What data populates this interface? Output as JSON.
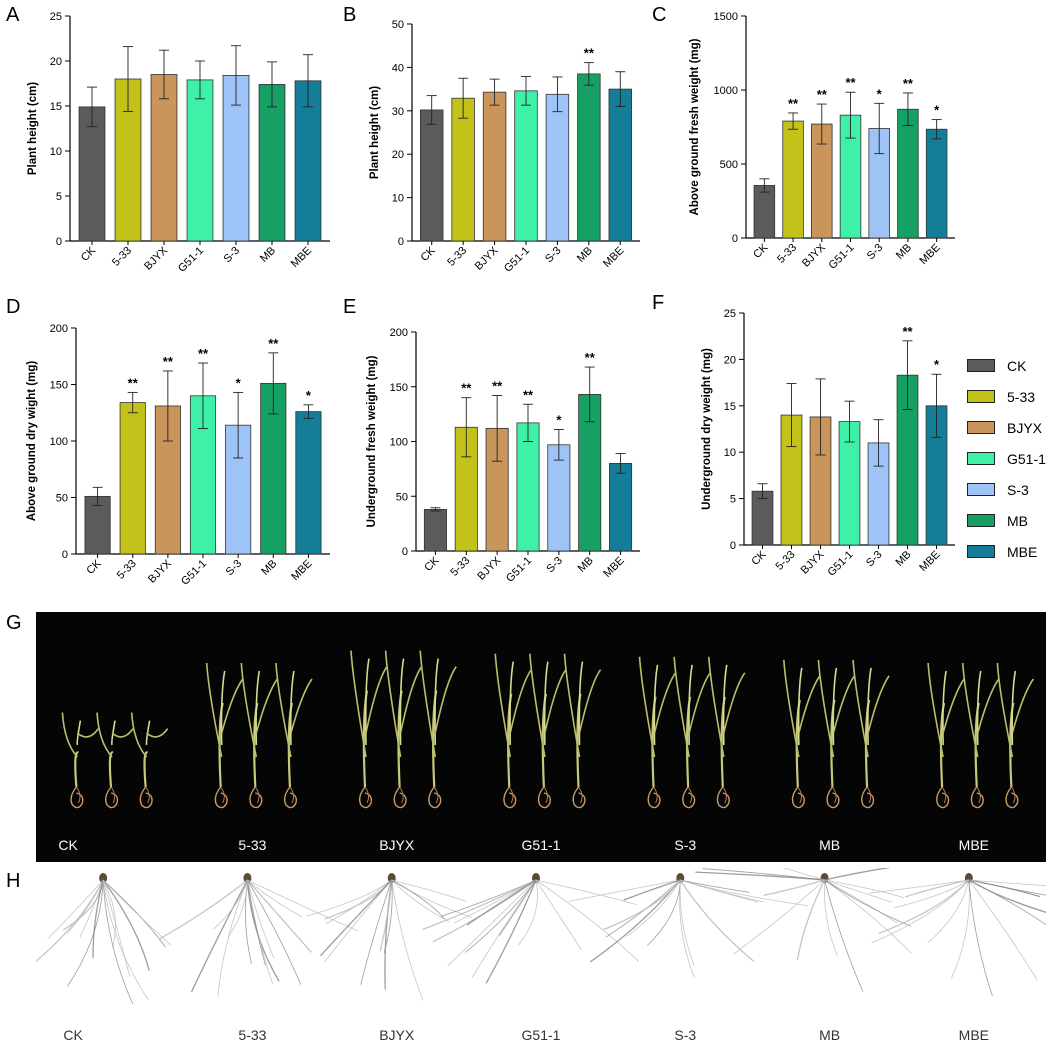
{
  "panels": [
    {
      "letter": "A",
      "chart_index": 0
    },
    {
      "letter": "B",
      "chart_index": 1
    },
    {
      "letter": "C",
      "chart_index": 2
    },
    {
      "letter": "D",
      "chart_index": 3
    },
    {
      "letter": "E",
      "chart_index": 4
    },
    {
      "letter": "F",
      "chart_index": 5
    },
    {
      "letter": "G"
    },
    {
      "letter": "H"
    }
  ],
  "colors": {
    "CK": "#5b5b5b",
    "5-33": "#c2c21a",
    "BJYX": "#c9955a",
    "G51-1": "#3ff0a8",
    "S-3": "#9ec3f7",
    "MB": "#17a063",
    "MBE": "#147d98"
  },
  "legend": [
    "CK",
    "5-33",
    "BJYX",
    "G51-1",
    "S-3",
    "MB",
    "MBE"
  ],
  "chart_data": [
    {
      "type": "bar",
      "ylabel": "Plant height (cm)",
      "categories": [
        "CK",
        "5-33",
        "BJYX",
        "G51-1",
        "S-3",
        "MB",
        "MBE"
      ],
      "values": [
        14.9,
        18.0,
        18.5,
        17.9,
        18.4,
        17.4,
        17.8
      ],
      "errors": [
        2.2,
        3.6,
        2.7,
        2.1,
        3.3,
        2.5,
        2.9
      ],
      "significance": [
        "",
        "",
        "",
        "",
        "",
        "",
        ""
      ],
      "ylim": [
        0,
        25
      ],
      "yticks": [
        0,
        5,
        10,
        15,
        20,
        25
      ]
    },
    {
      "type": "bar",
      "ylabel": "Plant height (cm)",
      "categories": [
        "CK",
        "5-33",
        "BJYX",
        "G51-1",
        "S-3",
        "MB",
        "MBE"
      ],
      "values": [
        30.2,
        32.9,
        34.3,
        34.6,
        33.8,
        38.5,
        35.0
      ],
      "errors": [
        3.3,
        4.6,
        3.0,
        3.3,
        4.0,
        2.6,
        4.0
      ],
      "significance": [
        "",
        "",
        "",
        "",
        "",
        "**",
        ""
      ],
      "ylim": [
        0,
        50
      ],
      "yticks": [
        0,
        10,
        20,
        30,
        40,
        50
      ]
    },
    {
      "type": "bar",
      "ylabel": "Above ground fresh weight (mg)",
      "categories": [
        "CK",
        "5-33",
        "BJYX",
        "G51-1",
        "S-3",
        "MB",
        "MBE"
      ],
      "values": [
        355,
        790,
        770,
        830,
        740,
        870,
        735
      ],
      "errors": [
        45,
        55,
        135,
        155,
        170,
        110,
        65
      ],
      "significance": [
        "",
        "**",
        "**",
        "**",
        "*",
        "**",
        "*"
      ],
      "ylim": [
        0,
        1500
      ],
      "yticks": [
        0,
        500,
        1000,
        1500
      ]
    },
    {
      "type": "bar",
      "ylabel": "Above ground dry wight (mg)",
      "categories": [
        "CK",
        "5-33",
        "BJYX",
        "G51-1",
        "S-3",
        "MB",
        "MBE"
      ],
      "values": [
        51,
        134,
        131,
        140,
        114,
        151,
        126
      ],
      "errors": [
        8,
        9,
        31,
        29,
        29,
        27,
        6
      ],
      "significance": [
        "",
        "**",
        "**",
        "**",
        "*",
        "**",
        "*"
      ],
      "ylim": [
        0,
        200
      ],
      "yticks": [
        0,
        50,
        100,
        150,
        200
      ]
    },
    {
      "type": "bar",
      "ylabel": "Underground fresh weight (mg)",
      "categories": [
        "CK",
        "5-33",
        "BJYX",
        "G51-1",
        "S-3",
        "MB",
        "MBE"
      ],
      "values": [
        38,
        113,
        112,
        117,
        97,
        143,
        80
      ],
      "errors": [
        1.5,
        27,
        30,
        17,
        14,
        25,
        9
      ],
      "significance": [
        "",
        "**",
        "**",
        "**",
        "*",
        "**",
        ""
      ],
      "ylim": [
        0,
        200
      ],
      "yticks": [
        0,
        50,
        100,
        150,
        200
      ]
    },
    {
      "type": "bar",
      "ylabel": "Underground dry weight (mg)",
      "categories": [
        "CK",
        "5-33",
        "BJYX",
        "G51-1",
        "S-3",
        "MB",
        "MBE"
      ],
      "values": [
        5.8,
        14.0,
        13.8,
        13.3,
        11.0,
        18.3,
        15.0
      ],
      "errors": [
        0.8,
        3.4,
        4.1,
        2.2,
        2.5,
        3.7,
        3.4
      ],
      "significance": [
        "",
        "",
        "",
        "",
        "",
        "**",
        "*"
      ],
      "ylim": [
        0,
        25
      ],
      "yticks": [
        0,
        5,
        10,
        15,
        20,
        25
      ]
    }
  ],
  "photo_g": {
    "labels": [
      "CK",
      "5-33",
      "BJYX",
      "G51-1",
      "S-3",
      "MB",
      "MBE"
    ]
  },
  "photo_h": {
    "labels": [
      "CK",
      "5-33",
      "BJYX",
      "G51-1",
      "S-3",
      "MB",
      "MBE"
    ]
  }
}
